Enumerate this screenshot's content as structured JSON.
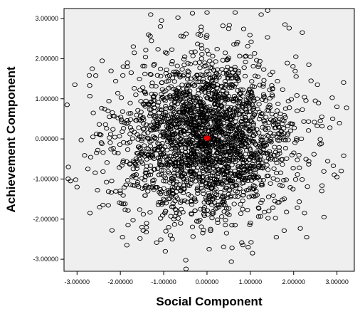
{
  "chart_data": {
    "type": "scatter",
    "title": "",
    "xlabel": "Social Component",
    "ylabel": "Achievement Component",
    "xlim": [
      -3.3,
      3.4
    ],
    "ylim": [
      -3.3,
      3.25
    ],
    "xticks": [
      -3,
      -2,
      -1,
      0,
      1,
      2,
      3
    ],
    "yticks": [
      -3,
      -2,
      -1,
      0,
      1,
      2,
      3
    ],
    "xtick_labels": [
      "-3.00000",
      "-2.00000",
      "-1.00000",
      "0.00000",
      "1.00000",
      "2.00000",
      "3.00000"
    ],
    "ytick_labels": [
      "-3.00000",
      "-2.00000",
      "-1.00000",
      "0.00000",
      "1.00000",
      "2.00000",
      "3.00000"
    ],
    "grid": false,
    "legend": "none",
    "plot_background": "#efefef",
    "marker_color": "#000000",
    "highlight_color": "#e00000",
    "series": [
      {
        "marker": "open-circle",
        "distribution": "bivariate normal, approx. mean 0, sd 1, ~2400 points",
        "values": [
          [
            -3.23,
            0.85
          ],
          [
            -3.2,
            -0.7
          ],
          [
            -3.15,
            -1.05
          ],
          [
            -3.05,
            1.35
          ],
          [
            -3.0,
            -1.2
          ],
          [
            -2.65,
            1.75
          ],
          [
            -2.7,
            -1.85
          ],
          [
            -2.75,
            -0.75
          ],
          [
            -2.4,
            -1.65
          ],
          [
            -2.25,
            0.55
          ],
          [
            -2.2,
            -1.05
          ],
          [
            -2.0,
            -1.35
          ],
          [
            -1.85,
            -2.65
          ],
          [
            -1.95,
            -2.45
          ],
          [
            -1.75,
            1.65
          ],
          [
            -1.7,
            2.3
          ],
          [
            -1.35,
            2.6
          ],
          [
            -1.3,
            3.1
          ],
          [
            -1.05,
            2.95
          ],
          [
            0.05,
            -2.75
          ],
          [
            -0.95,
            -2.3
          ],
          [
            -0.8,
            -2.5
          ],
          [
            0.0,
            3.15
          ],
          [
            0.65,
            3.15
          ],
          [
            1.25,
            3.1
          ],
          [
            1.4,
            3.2
          ],
          [
            1.8,
            2.85
          ],
          [
            2.2,
            2.65
          ],
          [
            2.55,
            1.35
          ],
          [
            2.65,
            0.55
          ],
          [
            2.9,
            0.5
          ],
          [
            3.0,
            0.8
          ],
          [
            3.1,
            -0.8
          ],
          [
            3.0,
            -0.95
          ],
          [
            2.65,
            -1.3
          ],
          [
            2.3,
            -2.45
          ],
          [
            2.25,
            -1.85
          ],
          [
            1.05,
            -2.85
          ],
          [
            0.95,
            -2.7
          ],
          [
            0.45,
            -2.35
          ],
          [
            2.05,
            2.05
          ],
          [
            2.35,
            1.85
          ],
          [
            2.7,
            -1.95
          ],
          [
            -2.45,
            0.1
          ],
          [
            -2.55,
            -0.35
          ],
          [
            2.5,
            0.95
          ],
          [
            -0.55,
            2.55
          ],
          [
            0.5,
            2.75
          ],
          [
            1.6,
            -2.45
          ],
          [
            -1.5,
            -2.2
          ]
        ]
      }
    ],
    "highlight_point": [
      0.0,
      0.02
    ]
  }
}
